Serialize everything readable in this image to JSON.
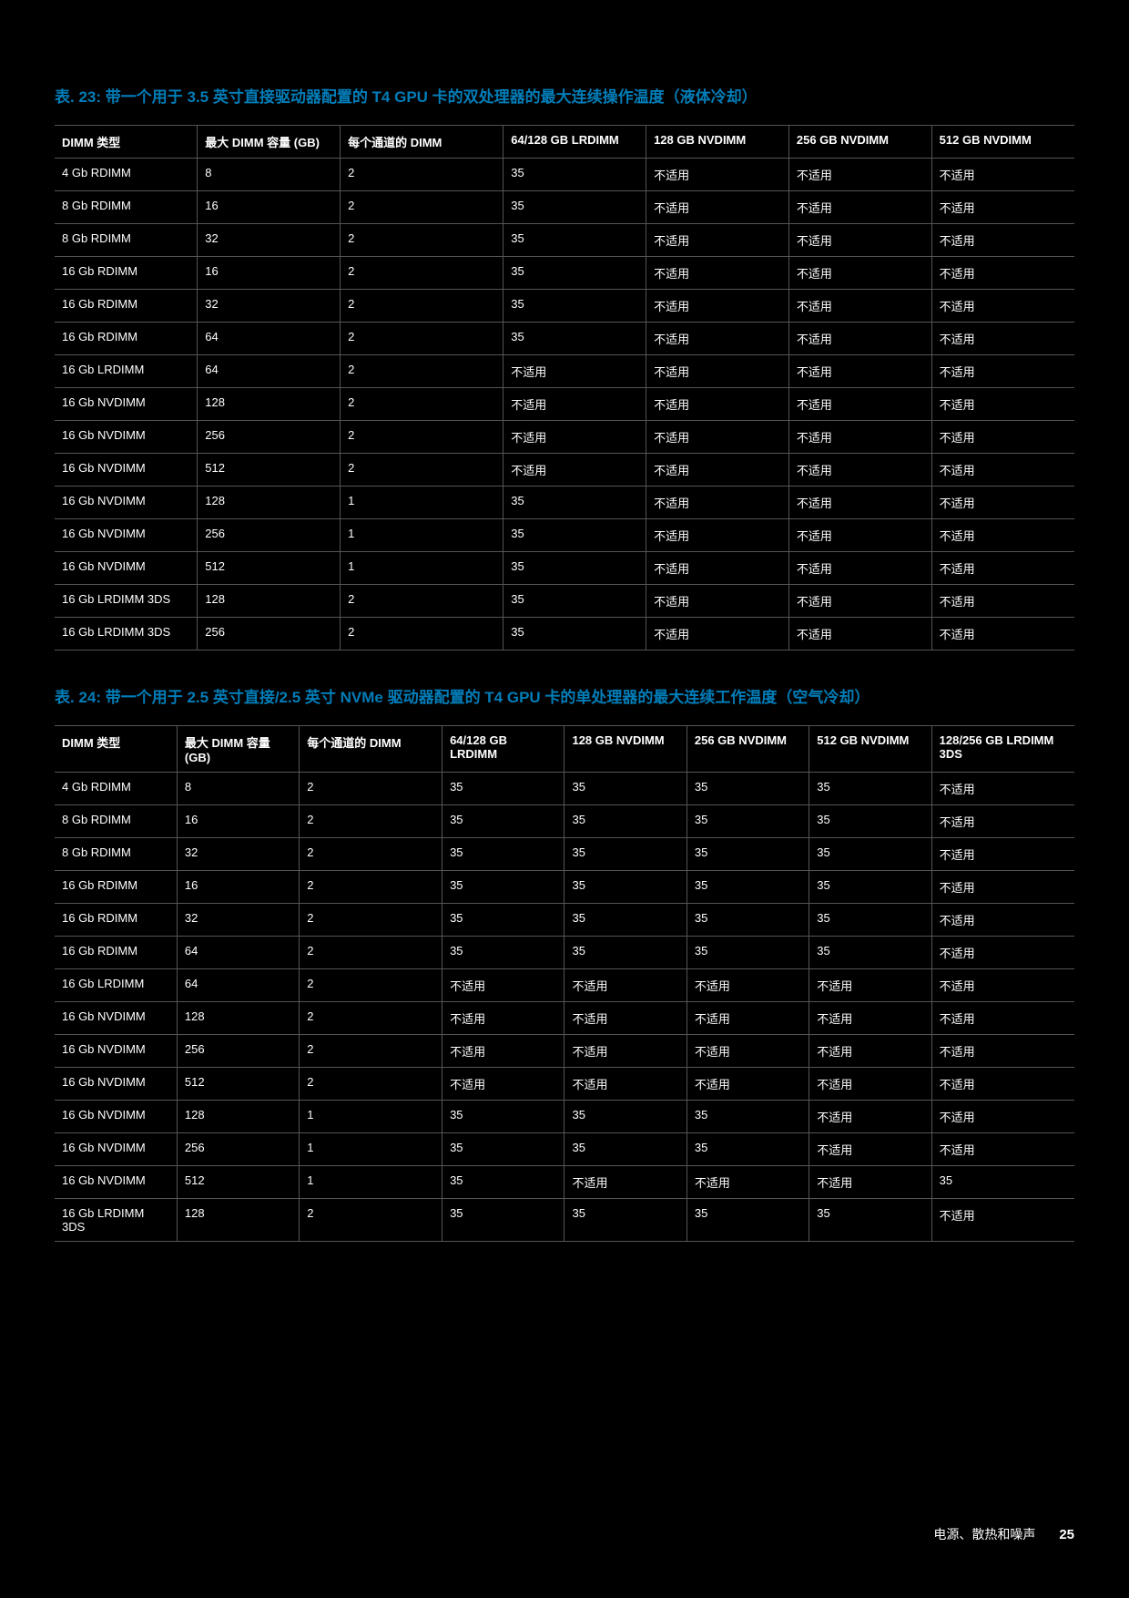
{
  "table23": {
    "title": "表. 23: 带一个用于 3.5 英寸直接驱动器配置的 T4 GPU 卡的双处理器的最大连续操作温度（液体冷却）",
    "headers": [
      "DIMM 类型",
      "最大 DIMM 容量 (GB)",
      "每个通道的 DIMM",
      "64/128 GB LRDIMM",
      "128 GB NVDIMM",
      "256 GB NVDIMM",
      "512 GB NVDIMM"
    ],
    "rows": [
      [
        "4 Gb RDIMM",
        "8",
        "2",
        "35",
        "不适用",
        "不适用",
        "不适用"
      ],
      [
        "8 Gb RDIMM",
        "16",
        "2",
        "35",
        "不适用",
        "不适用",
        "不适用"
      ],
      [
        "8 Gb RDIMM",
        "32",
        "2",
        "35",
        "不适用",
        "不适用",
        "不适用"
      ],
      [
        "16 Gb RDIMM",
        "16",
        "2",
        "35",
        "不适用",
        "不适用",
        "不适用"
      ],
      [
        "16 Gb RDIMM",
        "32",
        "2",
        "35",
        "不适用",
        "不适用",
        "不适用"
      ],
      [
        "16 Gb RDIMM",
        "64",
        "2",
        "35",
        "不适用",
        "不适用",
        "不适用"
      ],
      [
        "16 Gb LRDIMM",
        "64",
        "2",
        "不适用",
        "不适用",
        "不适用",
        "不适用"
      ],
      [
        "16 Gb NVDIMM",
        "128",
        "2",
        "不适用",
        "不适用",
        "不适用",
        "不适用"
      ],
      [
        "16 Gb NVDIMM",
        "256",
        "2",
        "不适用",
        "不适用",
        "不适用",
        "不适用"
      ],
      [
        "16 Gb NVDIMM",
        "512",
        "2",
        "不适用",
        "不适用",
        "不适用",
        "不适用"
      ],
      [
        "16 Gb NVDIMM",
        "128",
        "1",
        "35",
        "不适用",
        "不适用",
        "不适用"
      ],
      [
        "16 Gb NVDIMM",
        "256",
        "1",
        "35",
        "不适用",
        "不适用",
        "不适用"
      ],
      [
        "16 Gb NVDIMM",
        "512",
        "1",
        "35",
        "不适用",
        "不适用",
        "不适用"
      ],
      [
        "16 Gb LRDIMM 3DS",
        "128",
        "2",
        "35",
        "不适用",
        "不适用",
        "不适用"
      ],
      [
        "16 Gb LRDIMM 3DS",
        "256",
        "2",
        "35",
        "不适用",
        "不适用",
        "不适用"
      ]
    ]
  },
  "table24": {
    "title": "表. 24: 带一个用于 2.5 英寸直接/2.5 英寸 NVMe 驱动器配置的 T4 GPU 卡的单处理器的最大连续工作温度（空气冷却）",
    "headers": [
      "DIMM 类型",
      "最大 DIMM 容量 (GB)",
      "每个通道的 DIMM",
      "64/128 GB LRDIMM",
      "128 GB NVDIMM",
      "256 GB NVDIMM",
      "512 GB NVDIMM",
      "128/256 GB LRDIMM 3DS"
    ],
    "rows": [
      [
        "4 Gb RDIMM",
        "8",
        "2",
        "35",
        "35",
        "35",
        "35",
        "不适用"
      ],
      [
        "8 Gb RDIMM",
        "16",
        "2",
        "35",
        "35",
        "35",
        "35",
        "不适用"
      ],
      [
        "8 Gb RDIMM",
        "32",
        "2",
        "35",
        "35",
        "35",
        "35",
        "不适用"
      ],
      [
        "16 Gb RDIMM",
        "16",
        "2",
        "35",
        "35",
        "35",
        "35",
        "不适用"
      ],
      [
        "16 Gb RDIMM",
        "32",
        "2",
        "35",
        "35",
        "35",
        "35",
        "不适用"
      ],
      [
        "16 Gb RDIMM",
        "64",
        "2",
        "35",
        "35",
        "35",
        "35",
        "不适用"
      ],
      [
        "16 Gb LRDIMM",
        "64",
        "2",
        "不适用",
        "不适用",
        "不适用",
        "不适用",
        "不适用"
      ],
      [
        "16 Gb NVDIMM",
        "128",
        "2",
        "不适用",
        "不适用",
        "不适用",
        "不适用",
        "不适用"
      ],
      [
        "16 Gb NVDIMM",
        "256",
        "2",
        "不适用",
        "不适用",
        "不适用",
        "不适用",
        "不适用"
      ],
      [
        "16 Gb NVDIMM",
        "512",
        "2",
        "不适用",
        "不适用",
        "不适用",
        "不适用",
        "不适用"
      ],
      [
        "16 Gb NVDIMM",
        "128",
        "1",
        "35",
        "35",
        "35",
        "不适用",
        "不适用"
      ],
      [
        "16 Gb NVDIMM",
        "256",
        "1",
        "35",
        "35",
        "35",
        "不适用",
        "不适用"
      ],
      [
        "16 Gb NVDIMM",
        "512",
        "1",
        "35",
        "不适用",
        "不适用",
        "不适用",
        "35"
      ],
      [
        "16 Gb LRDIMM 3DS",
        "128",
        "2",
        "35",
        "35",
        "35",
        "35",
        "不适用"
      ]
    ]
  },
  "footer": {
    "label": "电源、散热和噪声",
    "page": "25"
  }
}
